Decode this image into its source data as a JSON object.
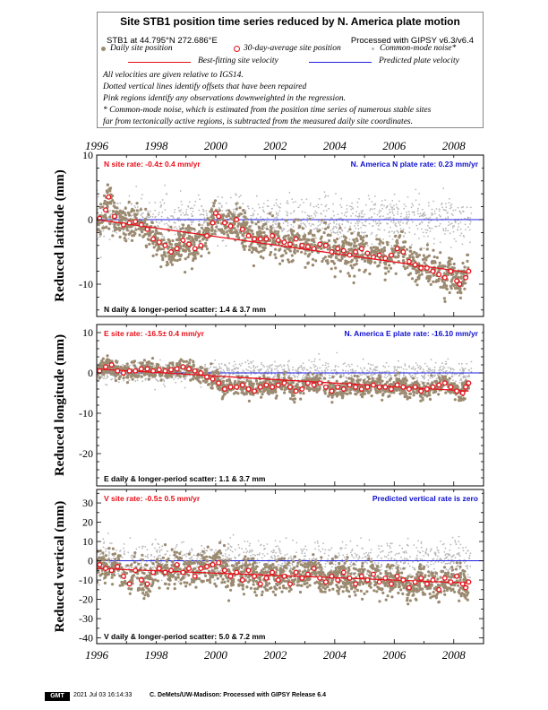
{
  "header": {
    "title": "Site STB1 position time series reduced by N. America plate motion",
    "site_coords": "STB1 at 44.795°N 272.686°E",
    "processed_with": "Processed with GIPSY v6.3/v6.4",
    "legend": {
      "daily": "Daily site position",
      "avg30": "30-day-average site position",
      "cmn": "Common-mode noise*",
      "bestfit": "Best-fitting site velocity",
      "predicted": "Predicted plate velocity"
    },
    "notes": [
      "All velocities are given relative to IGS14.",
      "Dotted vertical lines identify offsets that have been repaired",
      "Pink regions identify any observations downweighted in the regression.",
      "* Common-mode noise, which is estimated from the position time series of numerous stable sites",
      "far from tectonically active regions, is subtracted from the measured daily site coordinates."
    ]
  },
  "footer": {
    "logo_text": "GMT",
    "timestamp": "2021 Jul 03 16:14:33",
    "credit": "C. DeMets/UW-Madison: Processed with GIPSY Release 6.4"
  },
  "colors": {
    "daily": "#9b8a70",
    "cmn": "#b8b8b8",
    "avg30": "#e8101a",
    "bestfit": "#e8101a",
    "predicted": "#2020e0",
    "rate_red": "#e8101a",
    "rate_blue": "#1010d0"
  },
  "chart_data": [
    {
      "type": "scatter",
      "component": "N",
      "ylabel": "Reduced latitude (mm)",
      "xlim": [
        1996,
        2009
      ],
      "ylim": [
        -15,
        10
      ],
      "x_ticks": [
        1996,
        1998,
        2000,
        2002,
        2004,
        2006,
        2008
      ],
      "y_ticks": [
        -10,
        0,
        10
      ],
      "site_rate_text": "N site rate:  -0.4± 0.4 mm/yr",
      "plate_rate_text": "N. America N plate rate: 0.23 mm/yr",
      "scatter_text": "N daily & longer-period scatter:   1.4 &   3.7 mm",
      "bestfit_line": [
        [
          1996.0,
          0.0
        ],
        [
          2008.5,
          -8.2
        ]
      ],
      "predicted_line": [
        [
          1996.0,
          0.0
        ],
        [
          2009.0,
          0.0
        ]
      ],
      "avg30_series": [
        [
          1996.1,
          0.2
        ],
        [
          1996.3,
          1.5
        ],
        [
          1996.4,
          3.5
        ],
        [
          1996.6,
          0.5
        ],
        [
          1996.9,
          -0.8
        ],
        [
          1997.1,
          -0.5
        ],
        [
          1997.3,
          -0.3
        ],
        [
          1997.5,
          -0.8
        ],
        [
          1997.7,
          -1.5
        ],
        [
          1997.9,
          -3.0
        ],
        [
          1998.1,
          -3.5
        ],
        [
          1998.3,
          -4.0
        ],
        [
          1998.5,
          -5.0
        ],
        [
          1998.7,
          -4.5
        ],
        [
          1998.9,
          -3.2
        ],
        [
          1999.1,
          -3.8
        ],
        [
          1999.3,
          -4.5
        ],
        [
          1999.5,
          -4.0
        ],
        [
          1999.7,
          -2.5
        ],
        [
          1999.9,
          -0.5
        ],
        [
          2000.0,
          1.0
        ],
        [
          2000.1,
          0.5
        ],
        [
          2000.3,
          -0.5
        ],
        [
          2000.5,
          -1.0
        ],
        [
          2000.7,
          0.0
        ],
        [
          2000.9,
          -1.5
        ],
        [
          2001.1,
          -2.5
        ],
        [
          2001.3,
          -3.0
        ],
        [
          2001.5,
          -3.0
        ],
        [
          2001.7,
          -3.0
        ],
        [
          2001.9,
          -2.5
        ],
        [
          2002.1,
          -3.2
        ],
        [
          2002.3,
          -3.5
        ],
        [
          2002.5,
          -3.8
        ],
        [
          2002.7,
          -3.0
        ],
        [
          2002.9,
          -4.0
        ],
        [
          2003.1,
          -4.2
        ],
        [
          2003.3,
          -4.5
        ],
        [
          2003.5,
          -3.8
        ],
        [
          2003.7,
          -4.0
        ],
        [
          2003.9,
          -5.0
        ],
        [
          2004.1,
          -4.5
        ],
        [
          2004.3,
          -4.8
        ],
        [
          2004.5,
          -5.5
        ],
        [
          2004.7,
          -5.0
        ],
        [
          2004.9,
          -4.5
        ],
        [
          2005.1,
          -5.2
        ],
        [
          2005.3,
          -5.8
        ],
        [
          2005.5,
          -5.5
        ],
        [
          2005.7,
          -6.0
        ],
        [
          2005.9,
          -5.5
        ],
        [
          2006.1,
          -4.5
        ],
        [
          2006.3,
          -5.0
        ],
        [
          2006.5,
          -6.5
        ],
        [
          2006.7,
          -7.0
        ],
        [
          2006.9,
          -7.5
        ],
        [
          2007.1,
          -7.5
        ],
        [
          2007.3,
          -8.0
        ],
        [
          2007.5,
          -8.5
        ],
        [
          2007.7,
          -9.0
        ],
        [
          2007.9,
          -8.0
        ],
        [
          2008.1,
          -9.5
        ],
        [
          2008.2,
          -10.0
        ],
        [
          2008.4,
          -9.0
        ],
        [
          2008.5,
          -8.0
        ]
      ]
    },
    {
      "type": "scatter",
      "component": "E",
      "ylabel": "Reduced longitude (mm)",
      "xlim": [
        1996,
        2009
      ],
      "ylim": [
        -28,
        12
      ],
      "x_ticks": [
        1996,
        1998,
        2000,
        2002,
        2004,
        2006,
        2008
      ],
      "y_ticks": [
        -20,
        -10,
        0,
        10
      ],
      "site_rate_text": "E site rate:  -16.5± 0.4 mm/yr",
      "plate_rate_text": "N. America E plate rate: -16.10 mm/yr",
      "scatter_text": "E daily & longer-period scatter:    1.1 &   3.7 mm",
      "bestfit_line": [
        [
          1996.0,
          1.0
        ],
        [
          2008.5,
          -4.5
        ]
      ],
      "predicted_line": [
        [
          1996.0,
          0.0
        ],
        [
          2009.0,
          0.0
        ]
      ],
      "avg30_series": [
        [
          1996.1,
          0.5
        ],
        [
          1996.3,
          1.5
        ],
        [
          1996.5,
          2.0
        ],
        [
          1996.7,
          0.5
        ],
        [
          1996.9,
          0.0
        ],
        [
          1997.1,
          0.5
        ],
        [
          1997.3,
          0.5
        ],
        [
          1997.5,
          1.0
        ],
        [
          1997.7,
          1.0
        ],
        [
          1997.9,
          0.5
        ],
        [
          1998.1,
          0.8
        ],
        [
          1998.3,
          0.5
        ],
        [
          1998.5,
          0.8
        ],
        [
          1998.7,
          1.0
        ],
        [
          1998.9,
          1.5
        ],
        [
          1999.1,
          1.0
        ],
        [
          1999.3,
          0.5
        ],
        [
          1999.5,
          0.0
        ],
        [
          1999.7,
          -1.0
        ],
        [
          1999.9,
          -1.5
        ],
        [
          2000.1,
          -2.5
        ],
        [
          2000.3,
          -4.0
        ],
        [
          2000.5,
          -3.5
        ],
        [
          2000.7,
          -3.5
        ],
        [
          2000.9,
          -3.0
        ],
        [
          2001.1,
          -4.0
        ],
        [
          2001.3,
          -4.5
        ],
        [
          2001.5,
          -3.5
        ],
        [
          2001.7,
          -3.0
        ],
        [
          2001.9,
          -3.5
        ],
        [
          2002.1,
          -3.0
        ],
        [
          2002.3,
          -2.5
        ],
        [
          2002.5,
          -3.5
        ],
        [
          2002.7,
          -4.5
        ],
        [
          2002.9,
          -4.0
        ],
        [
          2003.1,
          -2.5
        ],
        [
          2003.3,
          -3.0
        ],
        [
          2003.5,
          -2.5
        ],
        [
          2003.7,
          -3.5
        ],
        [
          2003.9,
          -4.5
        ],
        [
          2004.1,
          -3.5
        ],
        [
          2004.3,
          -4.0
        ],
        [
          2004.5,
          -3.0
        ],
        [
          2004.7,
          -3.5
        ],
        [
          2004.9,
          -4.0
        ],
        [
          2005.1,
          -3.5
        ],
        [
          2005.3,
          -3.0
        ],
        [
          2005.5,
          -3.5
        ],
        [
          2005.7,
          -3.5
        ],
        [
          2005.9,
          -4.0
        ],
        [
          2006.1,
          -3.0
        ],
        [
          2006.3,
          -3.5
        ],
        [
          2006.5,
          -4.0
        ],
        [
          2006.7,
          -3.5
        ],
        [
          2006.9,
          -4.5
        ],
        [
          2007.1,
          -4.0
        ],
        [
          2007.3,
          -3.5
        ],
        [
          2007.5,
          -3.0
        ],
        [
          2007.7,
          -2.5
        ],
        [
          2007.9,
          -3.5
        ],
        [
          2008.1,
          -4.5
        ],
        [
          2008.3,
          -5.0
        ],
        [
          2008.4,
          -3.5
        ],
        [
          2008.5,
          -2.5
        ]
      ]
    },
    {
      "type": "scatter",
      "component": "V",
      "ylabel": "Reduced vertical (mm)",
      "xlim": [
        1996,
        2009
      ],
      "ylim": [
        -43,
        37
      ],
      "x_ticks": [
        1996,
        1998,
        2000,
        2002,
        2004,
        2006,
        2008
      ],
      "y_ticks": [
        -40,
        -30,
        -20,
        -10,
        0,
        10,
        20,
        30
      ],
      "site_rate_text": "V site rate:  -0.5± 0.5 mm/yr",
      "plate_rate_text": "Predicted vertical rate is zero",
      "scatter_text": "V daily & longer-period scatter:    5.0 &   7.2 mm",
      "bestfit_line": [
        [
          1996.0,
          -4.0
        ],
        [
          2008.5,
          -11.5
        ]
      ],
      "predicted_line": [
        [
          1996.0,
          0.0
        ],
        [
          2009.0,
          0.0
        ]
      ],
      "avg30_series": [
        [
          1996.1,
          -2.0
        ],
        [
          1996.3,
          -4.0
        ],
        [
          1996.5,
          -5.0
        ],
        [
          1996.7,
          -3.0
        ],
        [
          1996.9,
          -8.0
        ],
        [
          1997.1,
          -12.0
        ],
        [
          1997.3,
          -5.0
        ],
        [
          1997.5,
          -10.0
        ],
        [
          1997.7,
          -12.0
        ],
        [
          1997.9,
          -6.0
        ],
        [
          1998.1,
          -4.0
        ],
        [
          1998.3,
          -6.0
        ],
        [
          1998.5,
          -5.0
        ],
        [
          1998.7,
          -2.0
        ],
        [
          1998.9,
          -6.0
        ],
        [
          1999.1,
          -4.0
        ],
        [
          1999.3,
          -8.0
        ],
        [
          1999.5,
          -4.0
        ],
        [
          1999.7,
          -3.0
        ],
        [
          1999.9,
          -2.0
        ],
        [
          2000.1,
          -1.0
        ],
        [
          2000.3,
          -5.0
        ],
        [
          2000.5,
          -8.0
        ],
        [
          2000.7,
          -6.0
        ],
        [
          2000.9,
          -10.0
        ],
        [
          2001.1,
          -5.0
        ],
        [
          2001.3,
          -8.0
        ],
        [
          2001.5,
          -12.0
        ],
        [
          2001.7,
          -9.0
        ],
        [
          2001.9,
          -6.0
        ],
        [
          2002.1,
          -10.0
        ],
        [
          2002.3,
          -8.0
        ],
        [
          2002.5,
          -12.0
        ],
        [
          2002.7,
          -6.0
        ],
        [
          2002.9,
          -9.0
        ],
        [
          2003.1,
          -7.0
        ],
        [
          2003.3,
          -4.0
        ],
        [
          2003.5,
          -9.0
        ],
        [
          2003.7,
          -11.0
        ],
        [
          2003.9,
          -8.0
        ],
        [
          2004.1,
          -10.0
        ],
        [
          2004.3,
          -6.0
        ],
        [
          2004.5,
          -9.0
        ],
        [
          2004.7,
          -12.0
        ],
        [
          2004.9,
          -8.0
        ],
        [
          2005.1,
          -10.0
        ],
        [
          2005.3,
          -7.0
        ],
        [
          2005.5,
          -11.0
        ],
        [
          2005.7,
          -9.0
        ],
        [
          2005.9,
          -12.0
        ],
        [
          2006.1,
          -8.0
        ],
        [
          2006.3,
          -10.0
        ],
        [
          2006.5,
          -14.0
        ],
        [
          2006.7,
          -11.0
        ],
        [
          2006.9,
          -9.0
        ],
        [
          2007.1,
          -12.0
        ],
        [
          2007.3,
          -10.0
        ],
        [
          2007.5,
          -15.0
        ],
        [
          2007.7,
          -9.0
        ],
        [
          2007.9,
          -11.0
        ],
        [
          2008.1,
          -8.0
        ],
        [
          2008.3,
          -12.0
        ],
        [
          2008.4,
          -14.0
        ],
        [
          2008.5,
          -11.0
        ]
      ]
    }
  ]
}
